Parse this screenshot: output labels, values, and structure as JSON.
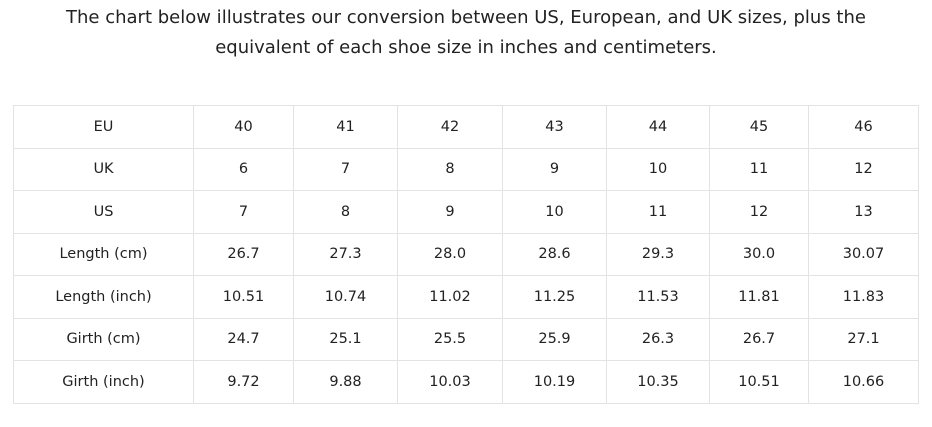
{
  "intro": {
    "text": "The chart below illustrates our conversion between US, European, and UK sizes, plus the equivalent of each shoe size in inches and centimeters."
  },
  "table": {
    "rows": [
      [
        "EU",
        "40",
        "41",
        "42",
        "43",
        "44",
        "45",
        "46"
      ],
      [
        "UK",
        "6",
        "7",
        "8",
        "9",
        "10",
        "11",
        "12"
      ],
      [
        "US",
        "7",
        "8",
        "9",
        "10",
        "11",
        "12",
        "13"
      ],
      [
        "Length (cm)",
        "26.7",
        "27.3",
        "28.0",
        "28.6",
        "29.3",
        "30.0",
        "30.07"
      ],
      [
        "Length (inch)",
        "10.51",
        "10.74",
        "11.02",
        "11.25",
        "11.53",
        "11.81",
        "11.83"
      ],
      [
        "Girth (cm)",
        "24.7",
        "25.1",
        "25.5",
        "25.9",
        "26.3",
        "26.7",
        "27.1"
      ],
      [
        "Girth (inch)",
        "9.72",
        "9.88",
        "10.03",
        "10.19",
        "10.35",
        "10.51",
        "10.66"
      ]
    ]
  }
}
